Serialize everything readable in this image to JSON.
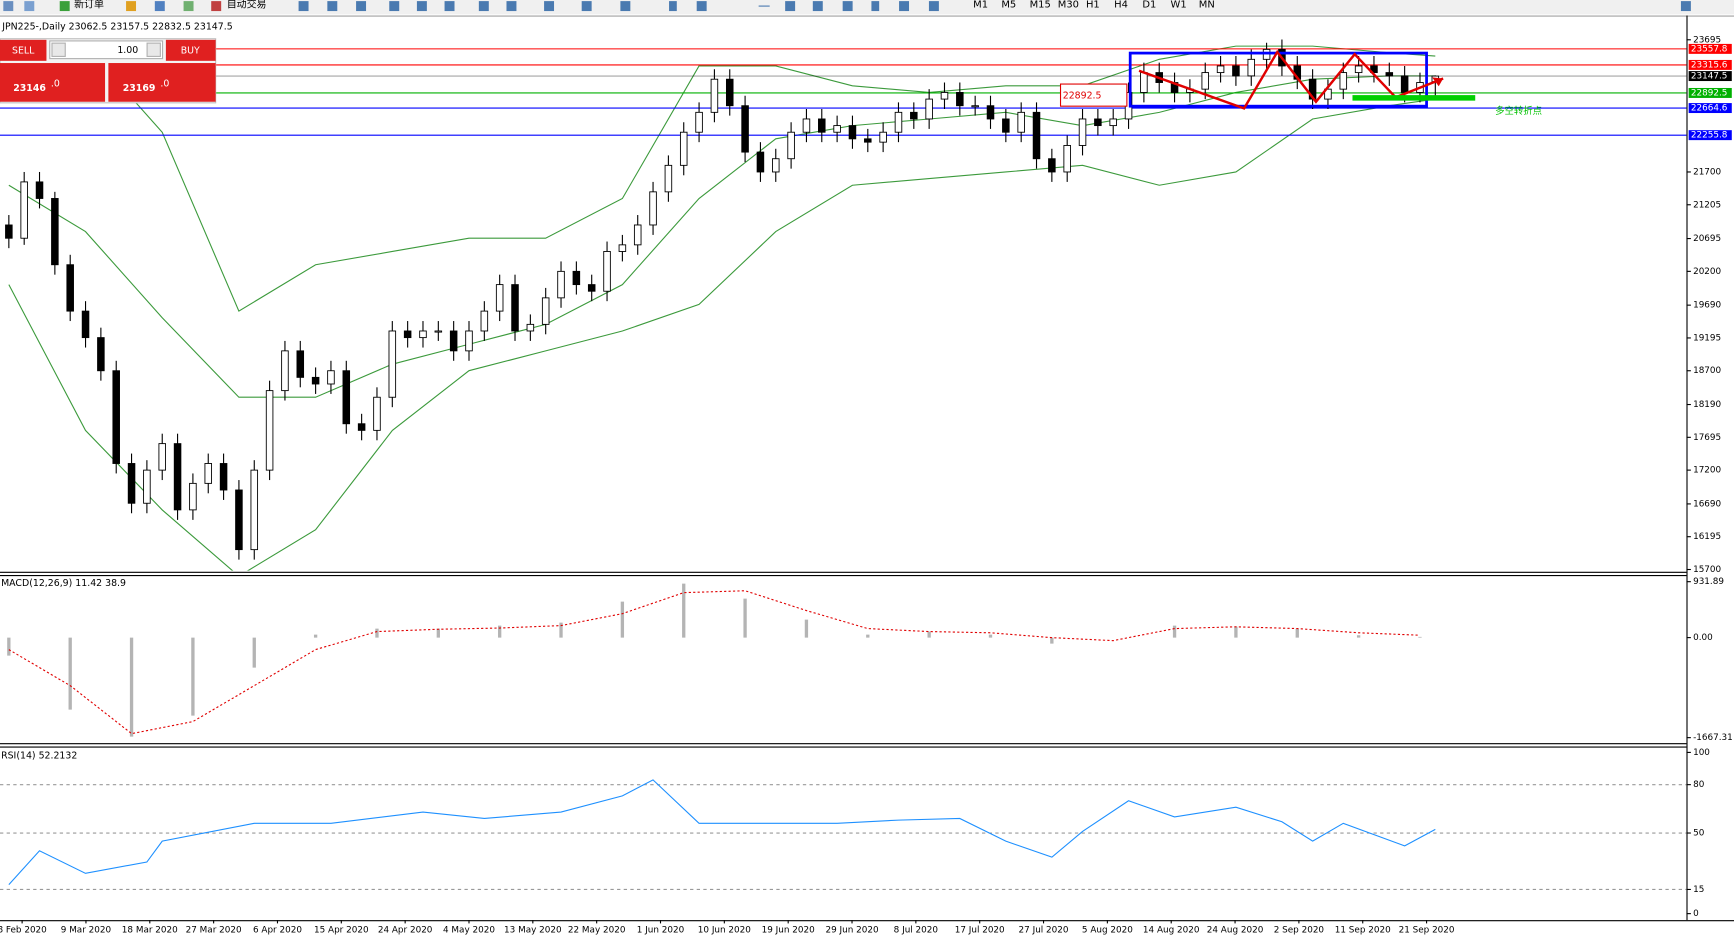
{
  "toolbar": {
    "items": [
      "新订单",
      "自动交易"
    ],
    "timeframes": [
      "M1",
      "M5",
      "M15",
      "M30",
      "H1",
      "H4",
      "D1",
      "W1",
      "MN"
    ]
  },
  "order_panel": {
    "sell": "SELL",
    "lot": "1.00",
    "buy": "BUY",
    "bid_main": "23146",
    "bid_frac": ".0",
    "ask_main": "23169",
    "ask_frac": ".0"
  },
  "chart_data": [
    {
      "type": "candlestick",
      "title": "JPN225-,Daily",
      "candles": [
        [
          20900,
          21050,
          20550,
          20700
        ],
        [
          20700,
          21700,
          20600,
          21550
        ],
        [
          21550,
          21700,
          21150,
          21300
        ],
        [
          21300,
          21400,
          20150,
          20300
        ],
        [
          20300,
          20450,
          19450,
          19600
        ],
        [
          19600,
          19750,
          19050,
          19200
        ],
        [
          19200,
          19350,
          18550,
          18700
        ],
        [
          18700,
          18850,
          17150,
          17300
        ],
        [
          17300,
          17450,
          16550,
          16700
        ],
        [
          16700,
          17350,
          16550,
          17200
        ],
        [
          17200,
          17750,
          17050,
          17600
        ],
        [
          17600,
          17750,
          16450,
          16600
        ],
        [
          16600,
          17150,
          16450,
          17000
        ],
        [
          17000,
          17450,
          16850,
          17300
        ],
        [
          17300,
          17450,
          16750,
          16900
        ],
        [
          16900,
          17050,
          15850,
          16000
        ],
        [
          16000,
          17350,
          15850,
          17200
        ],
        [
          17200,
          18550,
          17050,
          18400
        ],
        [
          18400,
          19150,
          18250,
          19000
        ],
        [
          19000,
          19150,
          18450,
          18600
        ],
        [
          18600,
          18750,
          18350,
          18500
        ],
        [
          18500,
          18850,
          18350,
          18700
        ],
        [
          18700,
          18850,
          17750,
          17900
        ],
        [
          17900,
          18050,
          17650,
          17800
        ],
        [
          17800,
          18450,
          17650,
          18300
        ],
        [
          18300,
          19450,
          18150,
          19300
        ],
        [
          19300,
          19450,
          19050,
          19200
        ],
        [
          19200,
          19450,
          19050,
          19300
        ],
        [
          19300,
          19450,
          19150,
          19300
        ],
        [
          19300,
          19450,
          18850,
          19000
        ],
        [
          19000,
          19450,
          18850,
          19300
        ],
        [
          19300,
          19750,
          19150,
          19600
        ],
        [
          19600,
          20150,
          19450,
          20000
        ],
        [
          20000,
          20150,
          19150,
          19300
        ],
        [
          19300,
          19550,
          19150,
          19400
        ],
        [
          19400,
          19950,
          19250,
          19800
        ],
        [
          19800,
          20350,
          19650,
          20200
        ],
        [
          20200,
          20350,
          19850,
          20000
        ],
        [
          20000,
          20150,
          19750,
          19900
        ],
        [
          19900,
          20650,
          19750,
          20500
        ],
        [
          20500,
          20750,
          20350,
          20600
        ],
        [
          20600,
          21050,
          20450,
          20900
        ],
        [
          20900,
          21550,
          20750,
          21400
        ],
        [
          21400,
          21950,
          21250,
          21800
        ],
        [
          21800,
          22450,
          21650,
          22300
        ],
        [
          22300,
          22750,
          22150,
          22600
        ],
        [
          22600,
          23250,
          22450,
          23100
        ],
        [
          23100,
          23250,
          22550,
          22700
        ],
        [
          22700,
          22850,
          21850,
          22000
        ],
        [
          22000,
          22150,
          21550,
          21700
        ],
        [
          21700,
          22050,
          21550,
          21900
        ],
        [
          21900,
          22450,
          21750,
          22300
        ],
        [
          22300,
          22650,
          22150,
          22500
        ],
        [
          22500,
          22650,
          22150,
          22300
        ],
        [
          22300,
          22550,
          22150,
          22400
        ],
        [
          22400,
          22550,
          22050,
          22200
        ],
        [
          22200,
          22350,
          22000,
          22150
        ],
        [
          22150,
          22450,
          22000,
          22300
        ],
        [
          22300,
          22750,
          22150,
          22600
        ],
        [
          22600,
          22750,
          22350,
          22500
        ],
        [
          22500,
          22950,
          22350,
          22800
        ],
        [
          22800,
          23050,
          22650,
          22900
        ],
        [
          22900,
          23050,
          22550,
          22700
        ],
        [
          22700,
          22850,
          22550,
          22700
        ],
        [
          22700,
          22850,
          22350,
          22500
        ],
        [
          22500,
          22650,
          22150,
          22300
        ],
        [
          22300,
          22750,
          22150,
          22600
        ],
        [
          22600,
          22750,
          21750,
          21900
        ],
        [
          21900,
          22050,
          21550,
          21700
        ],
        [
          21700,
          22250,
          21550,
          22100
        ],
        [
          22100,
          22650,
          21950,
          22500
        ],
        [
          22500,
          22650,
          22250,
          22400
        ],
        [
          22400,
          22650,
          22250,
          22500
        ],
        [
          22500,
          23050,
          22350,
          22900
        ],
        [
          22900,
          23350,
          22750,
          23200
        ],
        [
          23200,
          23350,
          22900,
          23050
        ],
        [
          23050,
          23200,
          22750,
          22900
        ],
        [
          22900,
          23100,
          22750,
          22950
        ],
        [
          22950,
          23350,
          22800,
          23200
        ],
        [
          23200,
          23450,
          23050,
          23300
        ],
        [
          23300,
          23450,
          23000,
          23150
        ],
        [
          23150,
          23550,
          23000,
          23400
        ],
        [
          23400,
          23650,
          23250,
          23550
        ],
        [
          23550,
          23700,
          23150,
          23300
        ],
        [
          23300,
          23450,
          22950,
          23100
        ],
        [
          23100,
          23250,
          22650,
          22800
        ],
        [
          22800,
          23100,
          22650,
          22950
        ],
        [
          22950,
          23350,
          22800,
          23200
        ],
        [
          23200,
          23450,
          23050,
          23300
        ],
        [
          23300,
          23450,
          23050,
          23200
        ],
        [
          23200,
          23350,
          23000,
          23150
        ],
        [
          23150,
          23300,
          22750,
          22900
        ],
        [
          22900,
          23200,
          22750,
          23050
        ],
        [
          23062.5,
          23157.5,
          22832.5,
          23147.5
        ]
      ],
      "bull_color": "#ffffff",
      "bear_color": "#000000",
      "ylim": [
        15683,
        23995
      ],
      "yticks": [
        23695,
        21700,
        21205,
        20695,
        20200,
        19690,
        19195,
        18700,
        18190,
        17695,
        17200,
        16690,
        16195,
        15700
      ],
      "bands": {
        "x": [
          0,
          5,
          10,
          15,
          20,
          25,
          30,
          35,
          40,
          45,
          50,
          55,
          60,
          65,
          70,
          75,
          80,
          85,
          90,
          93
        ],
        "upper": [
          23000,
          23600,
          22300,
          19600,
          20300,
          20500,
          20700,
          20700,
          21300,
          23300,
          23300,
          23000,
          22900,
          23000,
          23000,
          23400,
          23600,
          23600,
          23500,
          23450
        ],
        "middle": [
          21500,
          20800,
          19500,
          18300,
          18300,
          18800,
          19100,
          19400,
          20000,
          21300,
          22200,
          22400,
          22500,
          22600,
          22400,
          22600,
          22900,
          23100,
          23150,
          23150
        ],
        "lower": [
          20000,
          17800,
          16600,
          15600,
          16300,
          17800,
          18700,
          19000,
          19300,
          19700,
          20800,
          21500,
          21600,
          21700,
          21800,
          21500,
          21700,
          22500,
          22700,
          22800
        ],
        "color": "#3c9a3c"
      },
      "levels": [
        {
          "value": 23557.8,
          "color": "#ff0000"
        },
        {
          "value": 23315.6,
          "color": "#ff0000"
        },
        {
          "value": 23147.5,
          "color": "#000000"
        },
        {
          "value": 22892.5,
          "color": "#00b000"
        },
        {
          "value": 22664.6,
          "color": "#0000ff"
        },
        {
          "value": 22255.8,
          "color": "#0000ff"
        }
      ],
      "x_labels": [
        "8 Feb 2020",
        "9 Mar 2020",
        "18 Mar 2020",
        "27 Mar 2020",
        "6 Apr 2020",
        "15 Apr 2020",
        "24 Apr 2020",
        "4 May 2020",
        "13 May 2020",
        "22 May 2020",
        "1 Jun 2020",
        "10 Jun 2020",
        "19 Jun 2020",
        "29 Jun 2020",
        "8 Jul 2020",
        "17 Jul 2020",
        "27 Jul 2020",
        "5 Aug 2020",
        "14 Aug 2020",
        "24 Aug 2020",
        "2 Sep 2020",
        "11 Sep 2020",
        "21 Sep 2020"
      ],
      "annotation": "多空转折点"
    },
    {
      "type": "macd",
      "title": "MACD(12,26,9)",
      "ylim": [
        -1759,
        1024
      ],
      "yticks": [
        931.89,
        {
          "value": 0,
          "label": "0.00"
        },
        -1667.31
      ],
      "series": [
        {
          "kind": "histogram",
          "color": "#b4b4b4",
          "x": [
            0,
            4,
            8,
            12,
            16,
            20,
            24,
            28,
            32,
            36,
            40,
            44,
            48,
            52,
            56,
            60,
            64,
            68,
            72,
            76,
            80,
            84,
            88,
            92
          ],
          "values": [
            -300,
            -1200,
            -1650,
            -1300,
            -500,
            50,
            150,
            150,
            200,
            250,
            600,
            900,
            650,
            300,
            50,
            100,
            50,
            -100,
            0,
            200,
            180,
            150,
            40,
            11.42
          ]
        },
        {
          "kind": "dotted",
          "color": "#e00000",
          "x": [
            0,
            4,
            8,
            12,
            16,
            20,
            24,
            28,
            32,
            36,
            40,
            44,
            48,
            52,
            56,
            60,
            64,
            68,
            72,
            76,
            80,
            84,
            88,
            92
          ],
          "values": [
            -200,
            -800,
            -1600,
            -1400,
            -800,
            -200,
            100,
            140,
            160,
            200,
            400,
            750,
            780,
            450,
            150,
            100,
            80,
            0,
            -50,
            150,
            180,
            150,
            80,
            38.9
          ]
        }
      ]
    },
    {
      "type": "line",
      "title": "RSI(14)",
      "ylim": [
        -4,
        103
      ],
      "yticks": [
        100,
        80,
        50,
        15,
        0
      ],
      "grid": true,
      "series": [
        {
          "color": "#1e90ff",
          "x": [
            0,
            2,
            5,
            9,
            10,
            16,
            21,
            27,
            31,
            36,
            40,
            42,
            45,
            50,
            54,
            58,
            62,
            65,
            68,
            70,
            73,
            76,
            80,
            83,
            85,
            87,
            91,
            93
          ],
          "values": [
            18,
            39,
            25,
            32,
            45,
            56,
            56,
            63,
            59,
            63,
            73,
            83,
            56,
            56,
            56,
            58,
            59,
            45,
            35,
            51,
            70,
            60,
            66,
            57,
            45,
            56,
            42,
            52.2132
          ]
        }
      ]
    }
  ]
}
